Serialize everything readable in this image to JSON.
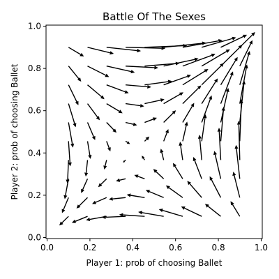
{
  "chart_data": {
    "type": "quiver",
    "title": "Battle Of The Sexes",
    "xlabel": "Player 1: prob of choosing Ballet",
    "ylabel": "Player 2: prob of choosing Ballet",
    "xlim": [
      -0.005,
      1.005
    ],
    "ylim": [
      -0.005,
      1.005
    ],
    "xticks": [
      0.0,
      0.2,
      0.4,
      0.6,
      0.8,
      1.0
    ],
    "yticks": [
      0.0,
      0.2,
      0.4,
      0.6,
      0.8,
      1.0
    ],
    "xtick_labels": [
      "0.0",
      "0.2",
      "0.4",
      "0.6",
      "0.8",
      "1.0"
    ],
    "ytick_labels": [
      "0.0",
      "0.2",
      "0.4",
      "0.6",
      "0.8",
      "1.0"
    ],
    "grid": false,
    "arrow_color": "#000000",
    "field": {
      "grid_min": 0.1,
      "grid_max": 0.9,
      "grid_count": 10,
      "equilibrium": 0.4,
      "scale": 1.6
    }
  }
}
